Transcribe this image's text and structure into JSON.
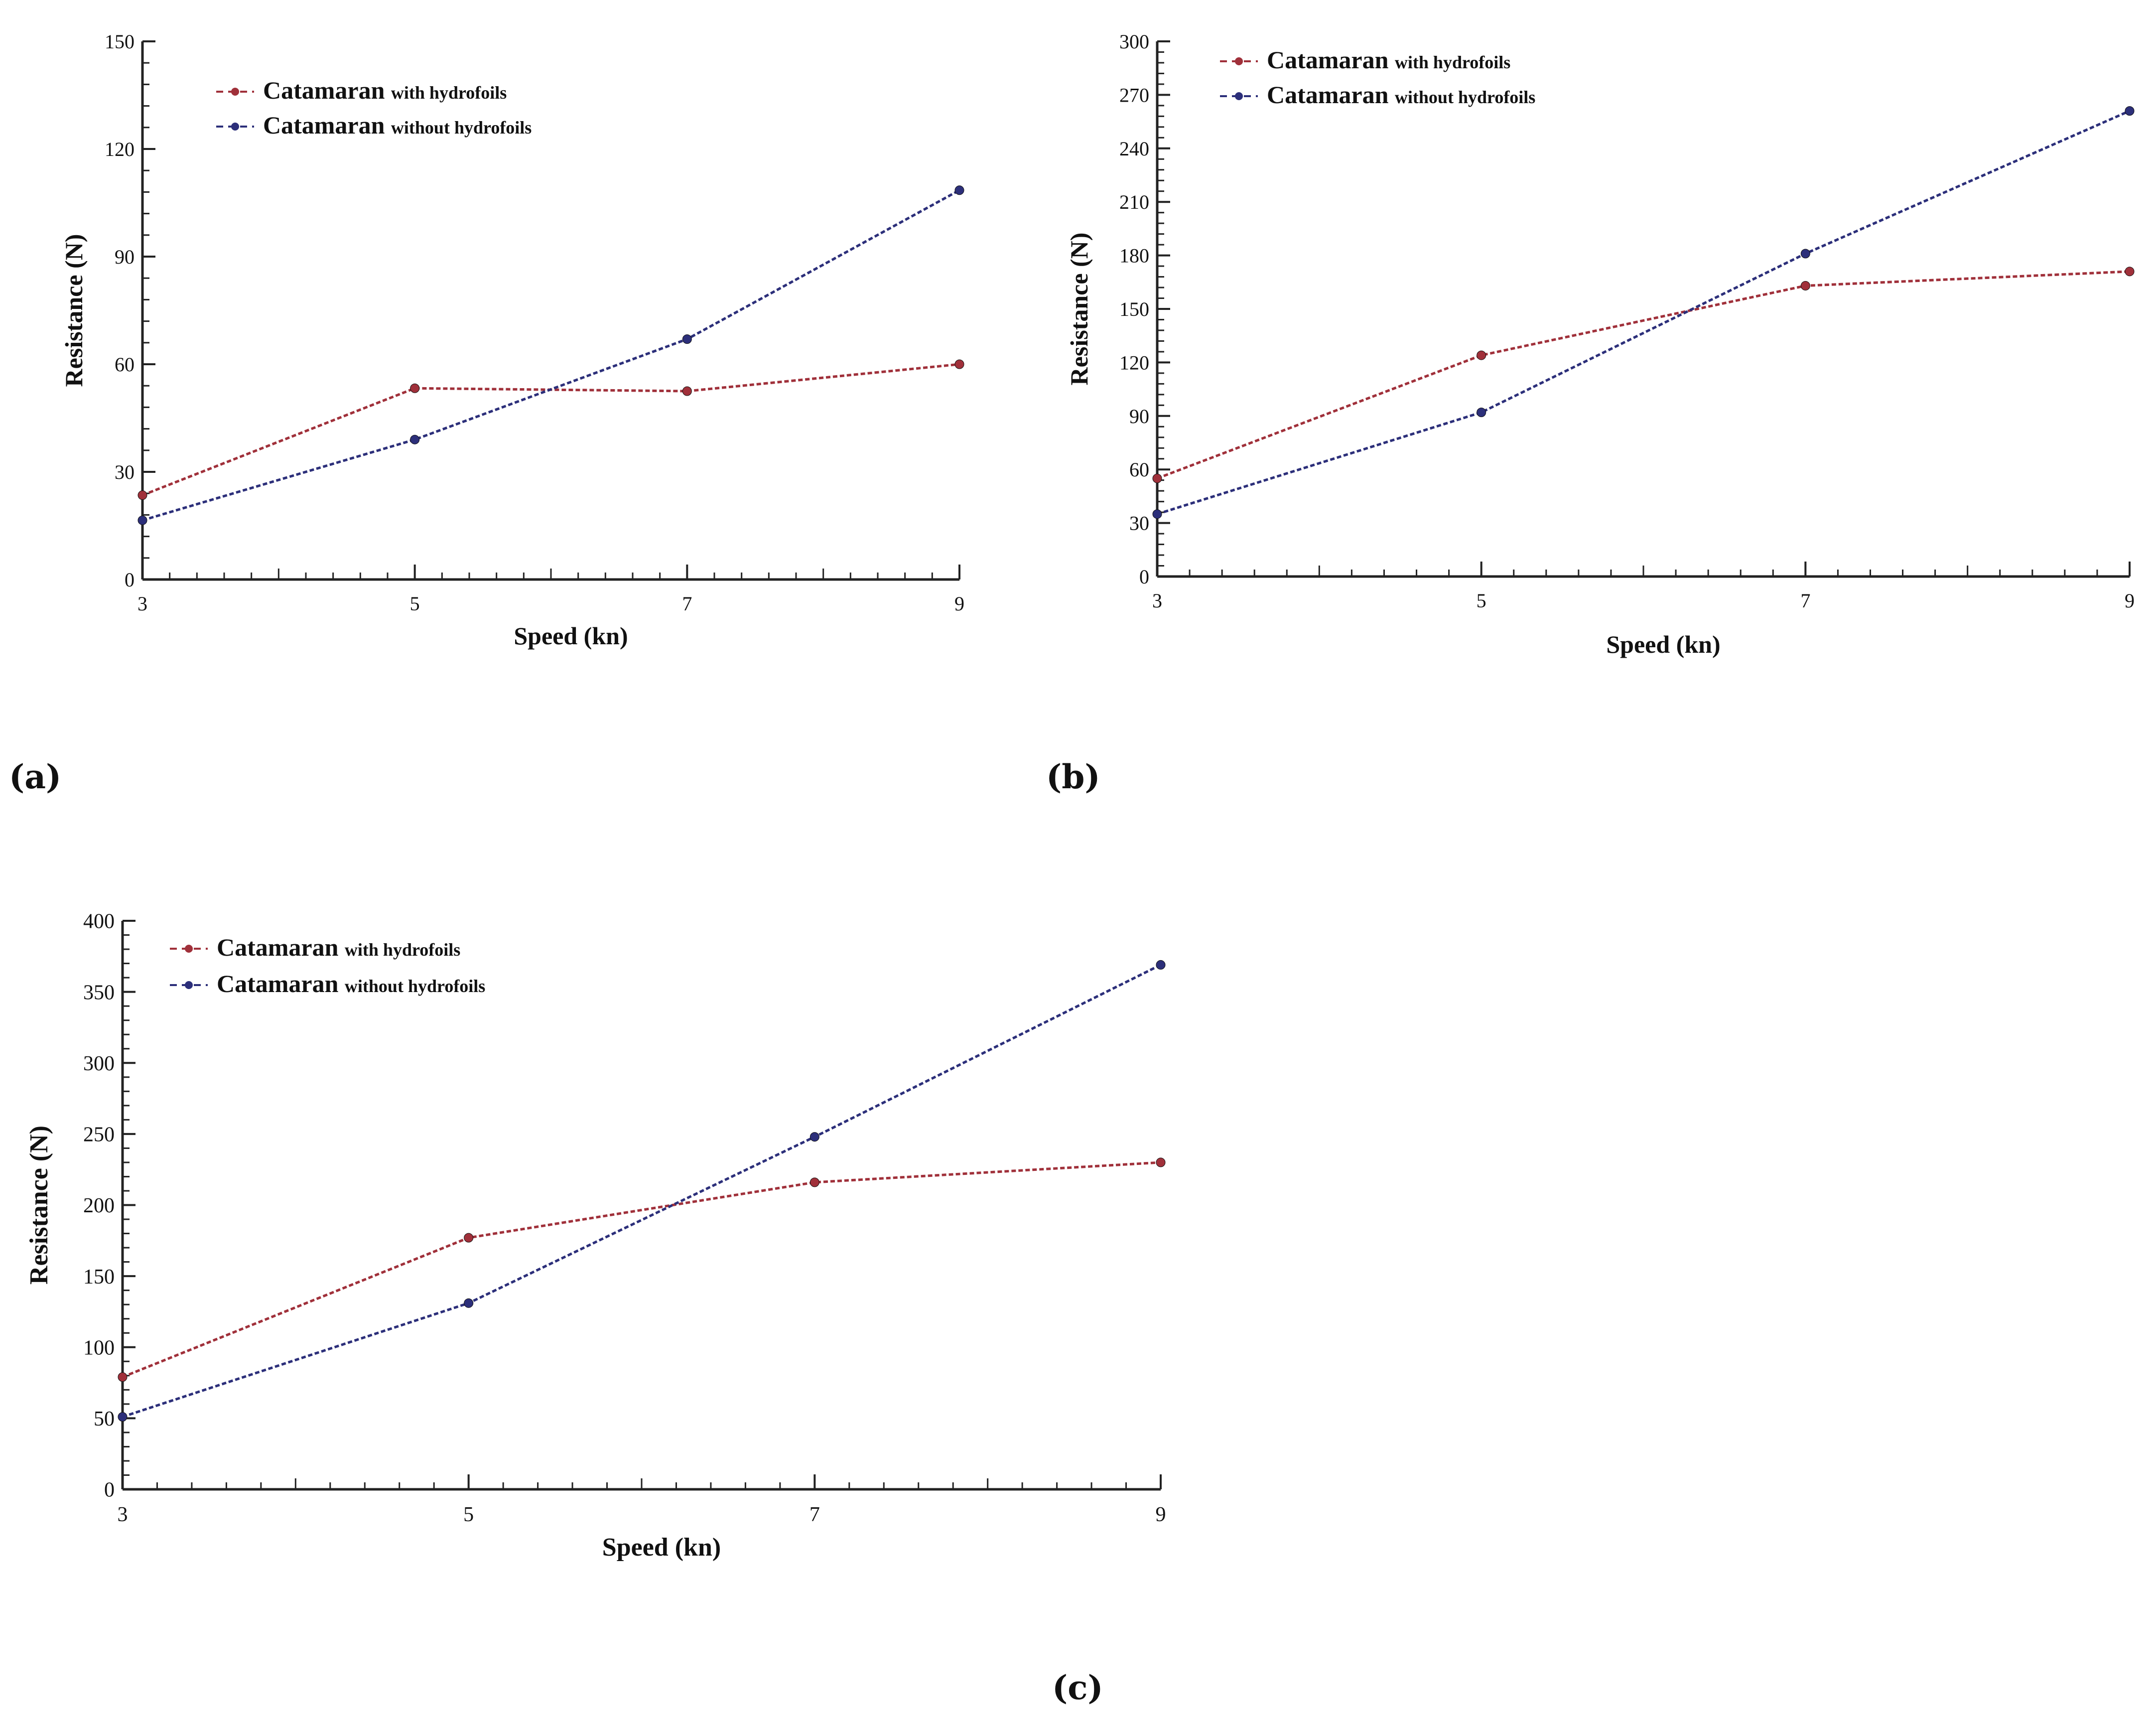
{
  "colors": {
    "with_hydrofoils": "#a0303a",
    "without_hydrofoils": "#2c2f7a",
    "axis": "#222222"
  },
  "panel_labels": [
    "(a)",
    "(b)",
    "(c)"
  ],
  "chart_data": [
    {
      "type": "line",
      "panel": "(a)",
      "xlabel": "Speed (kn)",
      "ylabel": "Resistance (N)",
      "xlim": [
        3,
        9
      ],
      "ylim": [
        0,
        150
      ],
      "xticks": [
        3,
        5,
        7,
        9
      ],
      "yticks": [
        0,
        30,
        60,
        90,
        120,
        150
      ],
      "x": [
        3,
        5,
        7,
        9
      ],
      "legend_position": "top-left",
      "series": [
        {
          "name": "Catamaran",
          "name_suffix": "with hydrofoils",
          "key": "with_hydrofoils",
          "values": [
            23.5,
            53.3,
            52.5,
            60.0
          ]
        },
        {
          "name": "Catamaran",
          "name_suffix": "without hydrofoils",
          "key": "without_hydrofoils",
          "values": [
            16.5,
            39.0,
            67.0,
            108.5
          ]
        }
      ]
    },
    {
      "type": "line",
      "panel": "(b)",
      "xlabel": "Speed (kn)",
      "ylabel": "Resistance (N)",
      "xlim": [
        3,
        9
      ],
      "ylim": [
        0,
        300
      ],
      "xticks": [
        3,
        5,
        7,
        9
      ],
      "yticks": [
        0,
        30,
        60,
        90,
        120,
        150,
        180,
        210,
        240,
        270,
        300
      ],
      "x": [
        3,
        5,
        7,
        9
      ],
      "legend_position": "top-left",
      "series": [
        {
          "name": "Catamaran",
          "name_suffix": "with hydrofoils",
          "key": "with_hydrofoils",
          "values": [
            55,
            124,
            163,
            171
          ]
        },
        {
          "name": "Catamaran",
          "name_suffix": "without hydrofoils",
          "key": "without_hydrofoils",
          "values": [
            35,
            92,
            181,
            261
          ]
        }
      ]
    },
    {
      "type": "line",
      "panel": "(c)",
      "xlabel": "Speed (kn)",
      "ylabel": "Resistance (N)",
      "xlim": [
        3,
        9
      ],
      "ylim": [
        0,
        400
      ],
      "xticks": [
        3,
        5,
        7,
        9
      ],
      "yticks": [
        0,
        50,
        100,
        150,
        200,
        250,
        300,
        350,
        400
      ],
      "x": [
        3,
        5,
        7,
        9
      ],
      "legend_position": "top-left",
      "series": [
        {
          "name": "Catamaran",
          "name_suffix": "with hydrofoils",
          "key": "with_hydrofoils",
          "values": [
            79,
            177,
            216,
            230
          ]
        },
        {
          "name": "Catamaran",
          "name_suffix": "without hydrofoils",
          "key": "without_hydrofoils",
          "values": [
            51,
            131,
            248,
            369
          ]
        }
      ]
    }
  ]
}
